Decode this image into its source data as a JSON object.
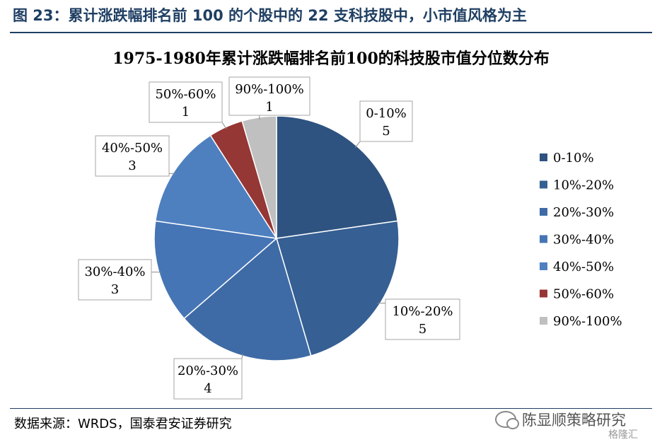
{
  "figure_title": "图 23：累计涨跌幅排名前 100 的个股中的 22 支科技股中，小市值风格为主",
  "source": "数据来源：WRDS，国泰君安证券研究",
  "watermark": {
    "text": "陈显顺策略研究",
    "badge": "格隆汇"
  },
  "chart_data": {
    "type": "pie",
    "title": "1975-1980年累计涨跌幅排名前100的科技股市值分位数分布",
    "categories": [
      "0-10%",
      "10%-20%",
      "20%-30%",
      "30%-40%",
      "40%-50%",
      "50%-60%",
      "90%-100%"
    ],
    "values": [
      5,
      5,
      4,
      3,
      3,
      1,
      1
    ],
    "colors": [
      "#2e5380",
      "#365f93",
      "#3e6ba6",
      "#4675b5",
      "#4e80c0",
      "#953735",
      "#c0c0c0"
    ],
    "legend": "right",
    "start_angle": "top, clockwise",
    "data_labels": "callout boxes with category name and count"
  }
}
